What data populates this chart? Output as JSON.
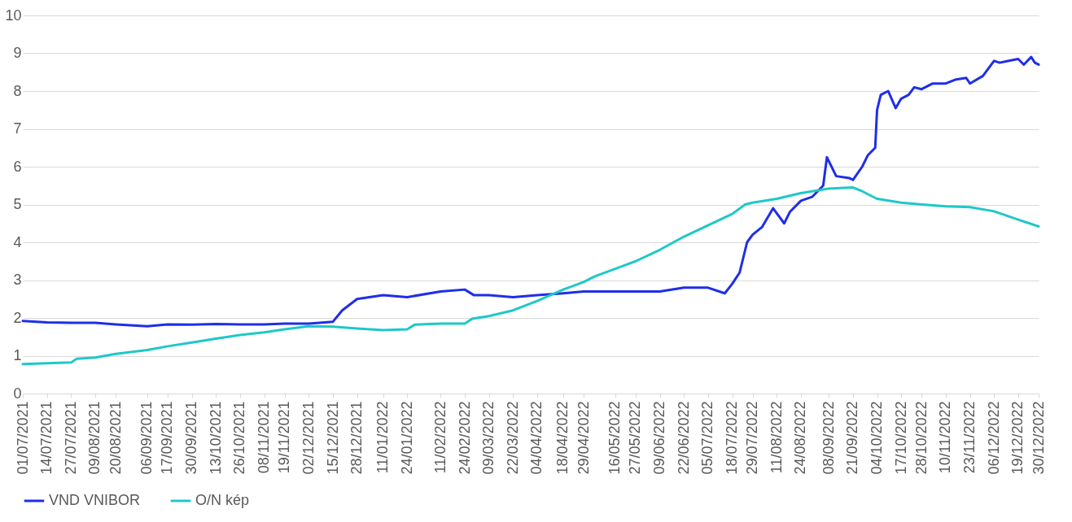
{
  "chart_data": {
    "type": "line",
    "xlim": [
      "2021-07-01",
      "2022-12-30"
    ],
    "ylim": [
      0,
      10
    ],
    "yticks": [
      0,
      1,
      2,
      3,
      4,
      5,
      6,
      7,
      8,
      9,
      10
    ],
    "grid": "y",
    "legend": "bottom",
    "line_style": "solid",
    "marker": "none",
    "xticks": [
      {
        "value": "2021-07-01",
        "label": "01/07/2021"
      },
      {
        "value": "2021-07-14",
        "label": "14/07/2021"
      },
      {
        "value": "2021-07-27",
        "label": "27/07/2021"
      },
      {
        "value": "2021-08-09",
        "label": "09/08/2021"
      },
      {
        "value": "2021-08-20",
        "label": "20/08/2021"
      },
      {
        "value": "2021-09-06",
        "label": "06/09/2021"
      },
      {
        "value": "2021-09-17",
        "label": "17/09/2021"
      },
      {
        "value": "2021-09-30",
        "label": "30/09/2021"
      },
      {
        "value": "2021-10-13",
        "label": "13/10/2021"
      },
      {
        "value": "2021-10-26",
        "label": "26/10/2021"
      },
      {
        "value": "2021-11-08",
        "label": "08/11/2021"
      },
      {
        "value": "2021-11-19",
        "label": "19/11/2021"
      },
      {
        "value": "2021-12-02",
        "label": "02/12/2021"
      },
      {
        "value": "2021-12-15",
        "label": "15/12/2021"
      },
      {
        "value": "2021-12-28",
        "label": "28/12/2021"
      },
      {
        "value": "2022-01-11",
        "label": "11/01/2022"
      },
      {
        "value": "2022-01-24",
        "label": "24/01/2022"
      },
      {
        "value": "2022-02-11",
        "label": "11/02/2022"
      },
      {
        "value": "2022-02-24",
        "label": "24/02/2022"
      },
      {
        "value": "2022-03-09",
        "label": "09/03/2022"
      },
      {
        "value": "2022-03-22",
        "label": "22/03/2022"
      },
      {
        "value": "2022-04-04",
        "label": "04/04/2022"
      },
      {
        "value": "2022-04-18",
        "label": "18/04/2022"
      },
      {
        "value": "2022-04-29",
        "label": "29/04/2022"
      },
      {
        "value": "2022-05-16",
        "label": "16/05/2022"
      },
      {
        "value": "2022-05-27",
        "label": "27/05/2022"
      },
      {
        "value": "2022-06-09",
        "label": "09/06/2022"
      },
      {
        "value": "2022-06-22",
        "label": "22/06/2022"
      },
      {
        "value": "2022-07-05",
        "label": "05/07/2022"
      },
      {
        "value": "2022-07-18",
        "label": "18/07/2022"
      },
      {
        "value": "2022-07-29",
        "label": "29/07/2022"
      },
      {
        "value": "2022-08-11",
        "label": "11/08/2022"
      },
      {
        "value": "2022-08-24",
        "label": "24/08/2022"
      },
      {
        "value": "2022-09-08",
        "label": "08/09/2022"
      },
      {
        "value": "2022-09-21",
        "label": "21/09/2022"
      },
      {
        "value": "2022-10-04",
        "label": "04/10/2022"
      },
      {
        "value": "2022-10-17",
        "label": "17/10/2022"
      },
      {
        "value": "2022-10-28",
        "label": "28/10/2022"
      },
      {
        "value": "2022-11-10",
        "label": "10/11/2022"
      },
      {
        "value": "2022-11-23",
        "label": "23/11/2022"
      },
      {
        "value": "2022-12-06",
        "label": "06/12/2022"
      },
      {
        "value": "2022-12-19",
        "label": "19/12/2022"
      },
      {
        "value": "2022-12-30",
        "label": "30/12/2022"
      }
    ],
    "series": [
      {
        "name": "VND VNIBOR",
        "color": "#1f2ee8",
        "x": [
          "2021-07-01",
          "2021-07-14",
          "2021-07-27",
          "2021-08-09",
          "2021-08-20",
          "2021-09-06",
          "2021-09-17",
          "2021-09-30",
          "2021-10-13",
          "2021-10-26",
          "2021-11-08",
          "2021-11-19",
          "2021-12-02",
          "2021-12-15",
          "2021-12-20",
          "2021-12-28",
          "2022-01-11",
          "2022-01-24",
          "2022-02-11",
          "2022-02-24",
          "2022-03-01",
          "2022-03-09",
          "2022-03-22",
          "2022-04-04",
          "2022-04-18",
          "2022-04-29",
          "2022-05-16",
          "2022-05-27",
          "2022-06-09",
          "2022-06-22",
          "2022-07-05",
          "2022-07-14",
          "2022-07-18",
          "2022-07-22",
          "2022-07-26",
          "2022-07-29",
          "2022-08-03",
          "2022-08-09",
          "2022-08-15",
          "2022-08-18",
          "2022-08-24",
          "2022-08-30",
          "2022-09-05",
          "2022-09-07",
          "2022-09-12",
          "2022-09-19",
          "2022-09-21",
          "2022-09-26",
          "2022-09-29",
          "2022-10-03",
          "2022-10-04",
          "2022-10-06",
          "2022-10-10",
          "2022-10-14",
          "2022-10-17",
          "2022-10-21",
          "2022-10-24",
          "2022-10-28",
          "2022-11-03",
          "2022-11-10",
          "2022-11-15",
          "2022-11-21",
          "2022-11-23",
          "2022-11-30",
          "2022-12-06",
          "2022-12-09",
          "2022-12-14",
          "2022-12-19",
          "2022-12-22",
          "2022-12-26",
          "2022-12-28",
          "2022-12-30"
        ],
        "values": [
          1.92,
          1.88,
          1.87,
          1.87,
          1.83,
          1.78,
          1.83,
          1.82,
          1.84,
          1.83,
          1.83,
          1.85,
          1.85,
          1.9,
          2.2,
          2.5,
          2.6,
          2.55,
          2.7,
          2.75,
          2.6,
          2.6,
          2.55,
          2.6,
          2.65,
          2.7,
          2.7,
          2.7,
          2.7,
          2.8,
          2.8,
          2.65,
          2.9,
          3.2,
          4.0,
          4.2,
          4.4,
          4.9,
          4.5,
          4.8,
          5.1,
          5.2,
          5.5,
          6.25,
          5.75,
          5.7,
          5.65,
          6.0,
          6.3,
          6.5,
          7.5,
          7.9,
          8.0,
          7.55,
          7.8,
          7.9,
          8.1,
          8.05,
          8.2,
          8.2,
          8.3,
          8.35,
          8.2,
          8.4,
          8.8,
          8.75,
          8.8,
          8.85,
          8.7,
          8.9,
          8.75,
          8.7
        ]
      },
      {
        "name": "O/N kép",
        "color": "#1ec8c8",
        "x": [
          "2021-07-01",
          "2021-07-27",
          "2021-07-30",
          "2021-08-09",
          "2021-08-20",
          "2021-09-06",
          "2021-09-17",
          "2021-09-30",
          "2021-10-13",
          "2021-10-26",
          "2021-11-08",
          "2021-11-19",
          "2021-12-02",
          "2021-12-15",
          "2021-12-28",
          "2022-01-11",
          "2022-01-24",
          "2022-01-28",
          "2022-02-11",
          "2022-02-24",
          "2022-02-28",
          "2022-03-09",
          "2022-03-22",
          "2022-04-04",
          "2022-04-18",
          "2022-04-29",
          "2022-05-05",
          "2022-05-16",
          "2022-05-27",
          "2022-06-09",
          "2022-06-22",
          "2022-07-05",
          "2022-07-18",
          "2022-07-25",
          "2022-07-29",
          "2022-08-11",
          "2022-08-24",
          "2022-09-08",
          "2022-09-21",
          "2022-09-26",
          "2022-10-04",
          "2022-10-17",
          "2022-10-28",
          "2022-11-10",
          "2022-11-23",
          "2022-12-06",
          "2022-12-19",
          "2022-12-30"
        ],
        "values": [
          0.78,
          0.82,
          0.92,
          0.95,
          1.05,
          1.15,
          1.25,
          1.35,
          1.45,
          1.55,
          1.62,
          1.7,
          1.78,
          1.77,
          1.72,
          1.68,
          1.7,
          1.82,
          1.85,
          1.85,
          1.98,
          2.05,
          2.2,
          2.45,
          2.75,
          2.95,
          3.1,
          3.3,
          3.5,
          3.8,
          4.15,
          4.45,
          4.75,
          5.0,
          5.05,
          5.15,
          5.3,
          5.42,
          5.45,
          5.35,
          5.15,
          5.05,
          5.0,
          4.95,
          4.93,
          4.82,
          4.6,
          4.42
        ]
      }
    ]
  }
}
